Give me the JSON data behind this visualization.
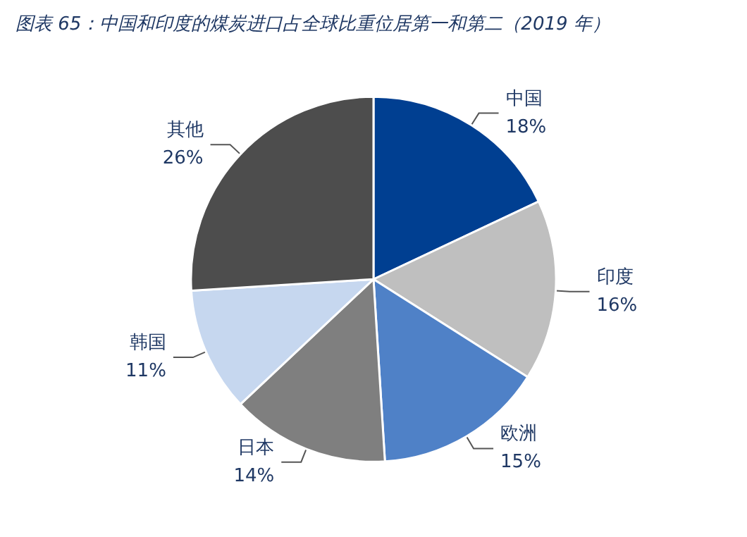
{
  "chart_data": {
    "type": "pie",
    "title": "图表 65：中国和印度的煤炭进口占全球比重位居第一和第二（2019 年）",
    "categories": [
      "中国",
      "印度",
      "欧洲",
      "日本",
      "韩国",
      "其他"
    ],
    "values": [
      18,
      16,
      15,
      14,
      11,
      26
    ],
    "value_labels": [
      "18%",
      "16%",
      "15%",
      "14%",
      "11%",
      "26%"
    ],
    "colors": [
      "#003f91",
      "#bfbfbf",
      "#4f81c7",
      "#7f7f7f",
      "#c6d7ef",
      "#4d4d4d"
    ],
    "legend": false
  }
}
